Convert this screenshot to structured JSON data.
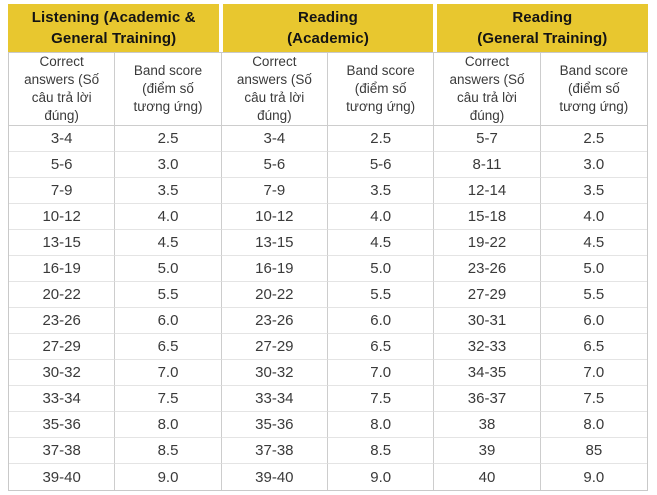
{
  "colors": {
    "header_yellow": "#E8C72F",
    "header_text": "#141414",
    "body_text": "#3A3A3A",
    "border_outer": "#C9C9C9",
    "border_vertical": "#CDCDCD",
    "border_horizontal": "#E4E4E4",
    "background": "#FFFFFF"
  },
  "chart_data": {
    "type": "table",
    "groups": [
      {
        "id": "listening",
        "title": "Listening (Academic &\nGeneral Training)",
        "columns": [
          "Correct answers (Số câu trả lời đúng)",
          "Band score (điểm số tương ứng)"
        ],
        "rows": [
          [
            "3-4",
            "2.5"
          ],
          [
            "5-6",
            "3.0"
          ],
          [
            "7-9",
            "3.5"
          ],
          [
            "10-12",
            "4.0"
          ],
          [
            "13-15",
            "4.5"
          ],
          [
            "16-19",
            "5.0"
          ],
          [
            "20-22",
            "5.5"
          ],
          [
            "23-26",
            "6.0"
          ],
          [
            "27-29",
            "6.5"
          ],
          [
            "30-32",
            "7.0"
          ],
          [
            "33-34",
            "7.5"
          ],
          [
            "35-36",
            "8.0"
          ],
          [
            "37-38",
            "8.5"
          ],
          [
            "39-40",
            "9.0"
          ]
        ]
      },
      {
        "id": "reading-academic",
        "title": "Reading\n(Academic)",
        "columns": [
          "Correct answers (Số câu trả lời đúng)",
          "Band score (điểm số tương ứng)"
        ],
        "rows": [
          [
            "3-4",
            "2.5"
          ],
          [
            "5-6",
            "5-6"
          ],
          [
            "7-9",
            "3.5"
          ],
          [
            "10-12",
            "4.0"
          ],
          [
            "13-15",
            "4.5"
          ],
          [
            "16-19",
            "5.0"
          ],
          [
            "20-22",
            "5.5"
          ],
          [
            "23-26",
            "6.0"
          ],
          [
            "27-29",
            "6.5"
          ],
          [
            "30-32",
            "7.0"
          ],
          [
            "33-34",
            "7.5"
          ],
          [
            "35-36",
            "8.0"
          ],
          [
            "37-38",
            "8.5"
          ],
          [
            "39-40",
            "9.0"
          ]
        ]
      },
      {
        "id": "reading-general",
        "title": "Reading\n(General Training)",
        "columns": [
          "Correct answers (Số câu trả lời đúng)",
          "Band score (điểm số tương ứng)"
        ],
        "rows": [
          [
            "5-7",
            "2.5"
          ],
          [
            "8-11",
            "3.0"
          ],
          [
            "12-14",
            "3.5"
          ],
          [
            "15-18",
            "4.0"
          ],
          [
            "19-22",
            "4.5"
          ],
          [
            "23-26",
            "5.0"
          ],
          [
            "27-29",
            "5.5"
          ],
          [
            "30-31",
            "6.0"
          ],
          [
            "32-33",
            "6.5"
          ],
          [
            "34-35",
            "7.0"
          ],
          [
            "36-37",
            "7.5"
          ],
          [
            "38",
            "8.0"
          ],
          [
            "39",
            "85"
          ],
          [
            "40",
            "9.0"
          ]
        ]
      }
    ]
  }
}
